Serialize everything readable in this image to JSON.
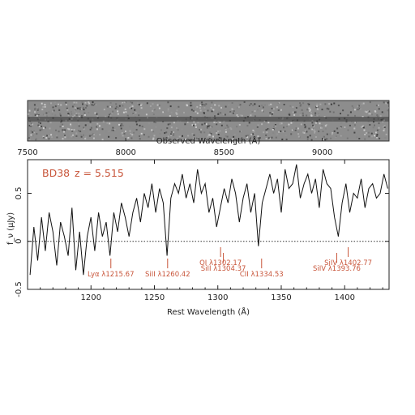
{
  "chart_data": {
    "type": "line",
    "title": "",
    "object": {
      "name": "BD38",
      "redshift": "z = 5.515",
      "color": "#c8553a"
    },
    "xlabel": "Rest Wavelength (Å)",
    "ylabel": "f_ν (μJy)",
    "top_xlabel": "Observed Wavelength (Å)",
    "xlim": [
      1150,
      1435
    ],
    "ylim": [
      -0.5,
      0.85
    ],
    "top_xlim": [
      7500,
      9340
    ],
    "x_ticks": [
      {
        "value": 1200,
        "label": "1200"
      },
      {
        "value": 1250,
        "label": "1250"
      },
      {
        "value": 1300,
        "label": "1300"
      },
      {
        "value": 1350,
        "label": "1350"
      },
      {
        "value": 1400,
        "label": "1400"
      }
    ],
    "y_ticks": [
      {
        "value": -0.5,
        "label": "-0.5"
      },
      {
        "value": 0,
        "label": "0"
      },
      {
        "value": 0.5,
        "label": "0.5"
      }
    ],
    "top_ticks": [
      {
        "value": 7500,
        "label": "7500"
      },
      {
        "value": 8000,
        "label": "8000"
      },
      {
        "value": 8500,
        "label": "8500"
      },
      {
        "value": 9000,
        "label": "9000"
      }
    ],
    "zero_line": 0,
    "line_color": "#111111",
    "annotation_color": "#c8553a",
    "lines": [
      {
        "x": 1215.67,
        "label": "Lyα λ1215.67",
        "row": 1
      },
      {
        "x": 1260.42,
        "label": "SiII λ1260.42",
        "row": 1
      },
      {
        "x": 1302.17,
        "label": "OI λ1302.17",
        "row": 0
      },
      {
        "x": 1304.37,
        "label": "SiII λ1304.37",
        "row": 0.5
      },
      {
        "x": 1334.53,
        "label": "CII λ1334.53",
        "row": 1
      },
      {
        "x": 1393.76,
        "label": "SiIV λ1393.76",
        "row": 0.5
      },
      {
        "x": 1402.77,
        "label": "SiIV λ1402.77",
        "row": 0
      }
    ],
    "series": [
      {
        "x": [
          1152,
          1155,
          1158,
          1161,
          1164,
          1167,
          1170,
          1173,
          1176,
          1179,
          1182,
          1185,
          1188,
          1191,
          1194,
          1197,
          1200,
          1203,
          1206,
          1209,
          1212,
          1215,
          1218,
          1221,
          1224,
          1227,
          1230,
          1233,
          1236,
          1239,
          1242,
          1245,
          1248,
          1251,
          1254,
          1257,
          1260,
          1263,
          1266,
          1269,
          1272,
          1275,
          1278,
          1281,
          1284,
          1287,
          1290,
          1293,
          1296,
          1299,
          1302,
          1305,
          1308,
          1311,
          1314,
          1317,
          1320,
          1323,
          1326,
          1329,
          1332,
          1335,
          1338,
          1341,
          1344,
          1347,
          1350,
          1353,
          1356,
          1359,
          1362,
          1365,
          1368,
          1371,
          1374,
          1377,
          1380,
          1383,
          1386,
          1389,
          1392,
          1395,
          1398,
          1401,
          1404,
          1407,
          1410,
          1413,
          1416,
          1419,
          1422,
          1425,
          1428,
          1431,
          1434
        ],
        "values": [
          -0.35,
          0.15,
          -0.2,
          0.25,
          -0.1,
          0.3,
          0.1,
          -0.25,
          0.2,
          0.05,
          -0.15,
          0.35,
          -0.3,
          0.1,
          -0.35,
          0.05,
          0.25,
          -0.1,
          0.3,
          0.05,
          0.2,
          -0.15,
          0.3,
          0.1,
          0.4,
          0.25,
          0.05,
          0.3,
          0.45,
          0.2,
          0.5,
          0.35,
          0.6,
          0.3,
          0.55,
          0.4,
          -0.15,
          0.45,
          0.6,
          0.5,
          0.7,
          0.45,
          0.6,
          0.4,
          0.75,
          0.5,
          0.6,
          0.3,
          0.45,
          0.15,
          0.35,
          0.55,
          0.4,
          0.65,
          0.5,
          0.2,
          0.45,
          0.6,
          0.3,
          0.5,
          -0.05,
          0.4,
          0.55,
          0.7,
          0.5,
          0.65,
          0.3,
          0.75,
          0.55,
          0.6,
          0.8,
          0.45,
          0.6,
          0.7,
          0.5,
          0.65,
          0.35,
          0.75,
          0.6,
          0.55,
          0.25,
          0.05,
          0.4,
          0.6,
          0.3,
          0.5,
          0.45,
          0.65,
          0.35,
          0.55,
          0.6,
          0.45,
          0.5,
          0.7,
          0.55
        ]
      }
    ]
  }
}
